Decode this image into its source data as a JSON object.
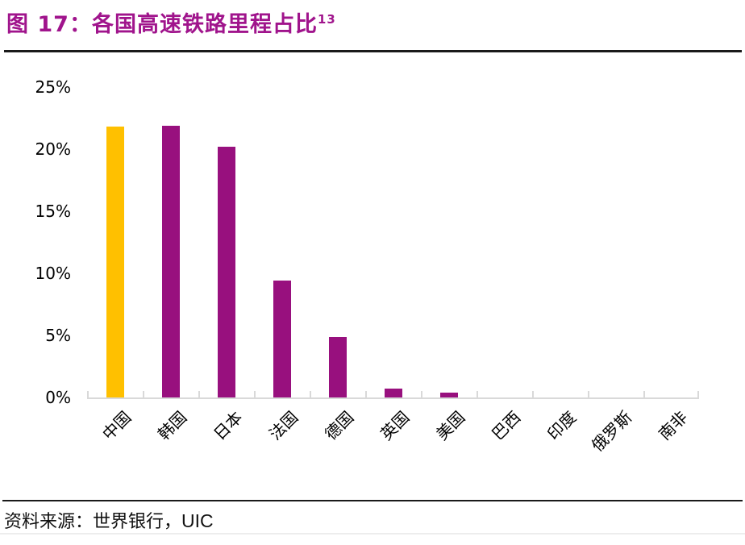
{
  "title": {
    "prefix": "图 17：",
    "main": "各国高速铁路里程占比",
    "superscript": "13"
  },
  "source": {
    "label_cn": "资料来源：世界银行，",
    "label_en": "UIC"
  },
  "colors": {
    "title": "#a0148c",
    "bar_default": "#98107e",
    "bar_highlight": "#ffc000",
    "axis": "#d9d9d9",
    "text": "#000000"
  },
  "chart_data": {
    "type": "bar",
    "title": "各国高速铁路里程占比",
    "categories": [
      "中国",
      "韩国",
      "日本",
      "法国",
      "德国",
      "英国",
      "美国",
      "巴西",
      "印度",
      "俄罗斯",
      "南非"
    ],
    "category_slugs": [
      "china",
      "korea",
      "japan",
      "france",
      "germany",
      "uk",
      "usa",
      "brazil",
      "india",
      "russia",
      "south-africa"
    ],
    "values": [
      21.8,
      21.9,
      20.2,
      9.4,
      4.9,
      0.7,
      0.4,
      0,
      0,
      0,
      0
    ],
    "highlight_index": 0,
    "xlabel": "",
    "ylabel": "",
    "ylim": [
      0,
      25
    ],
    "yticks": [
      0,
      5,
      10,
      15,
      20,
      25
    ],
    "ytick_labels": [
      "0%",
      "5%",
      "10%",
      "15%",
      "20%",
      "25%"
    ],
    "grid": false,
    "legend": false,
    "xtick_rotation_deg": 45
  }
}
